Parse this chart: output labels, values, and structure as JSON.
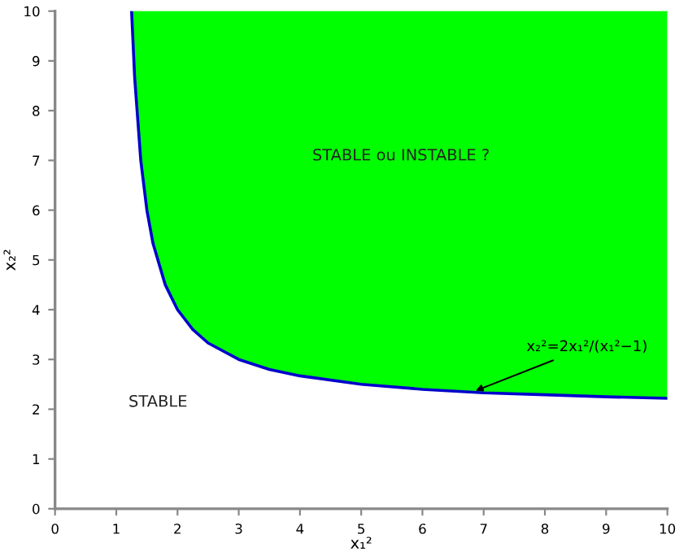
{
  "chart_data": {
    "type": "line",
    "xlabel": "x₁²",
    "ylabel": "x₂²",
    "x": [
      1.25,
      1.3,
      1.4,
      1.5,
      1.6,
      1.8,
      2,
      2.25,
      2.5,
      3,
      3.5,
      4,
      5,
      6,
      7,
      8,
      9,
      10
    ],
    "series": [
      {
        "color": "#00ff00",
        "values": [
          10,
          10,
          10,
          10,
          10,
          10,
          10,
          10,
          10,
          10,
          10,
          10,
          10,
          10,
          10,
          10,
          10,
          10
        ],
        "lower": [
          10,
          8.67,
          7,
          6,
          5.33,
          4.5,
          4,
          3.6,
          3.33,
          3,
          2.8,
          2.67,
          2.5,
          2.4,
          2.33,
          2.29,
          2.25,
          2.22
        ],
        "upper": [
          10,
          10,
          10,
          10,
          10,
          10,
          10,
          10,
          10,
          10,
          10,
          10,
          10,
          10,
          10,
          10,
          10,
          10
        ]
      },
      {
        "color": "#0000cc",
        "values": [
          10,
          8.67,
          7,
          6,
          5.33,
          4.5,
          4,
          3.6,
          3.33,
          3,
          2.8,
          2.67,
          2.5,
          2.4,
          2.33,
          2.29,
          2.25,
          2.22
        ]
      }
    ],
    "xlim": [
      0,
      10
    ],
    "ylim": [
      0,
      10
    ],
    "xticks": [
      0,
      1,
      2,
      3,
      4,
      5,
      6,
      7,
      8,
      9,
      10
    ],
    "yticks": [
      0,
      1,
      2,
      3,
      4,
      5,
      6,
      7,
      8,
      9,
      10
    ],
    "grid": false,
    "legend": false,
    "marker": "none",
    "line_style": "solid",
    "annotations": [
      "STABLE ou INSTABLE ?",
      "STABLE",
      {
        "text": "x₂²=2x₁²/(x₁²−1)",
        "x": 6.8,
        "y": 2.34
      }
    ]
  }
}
